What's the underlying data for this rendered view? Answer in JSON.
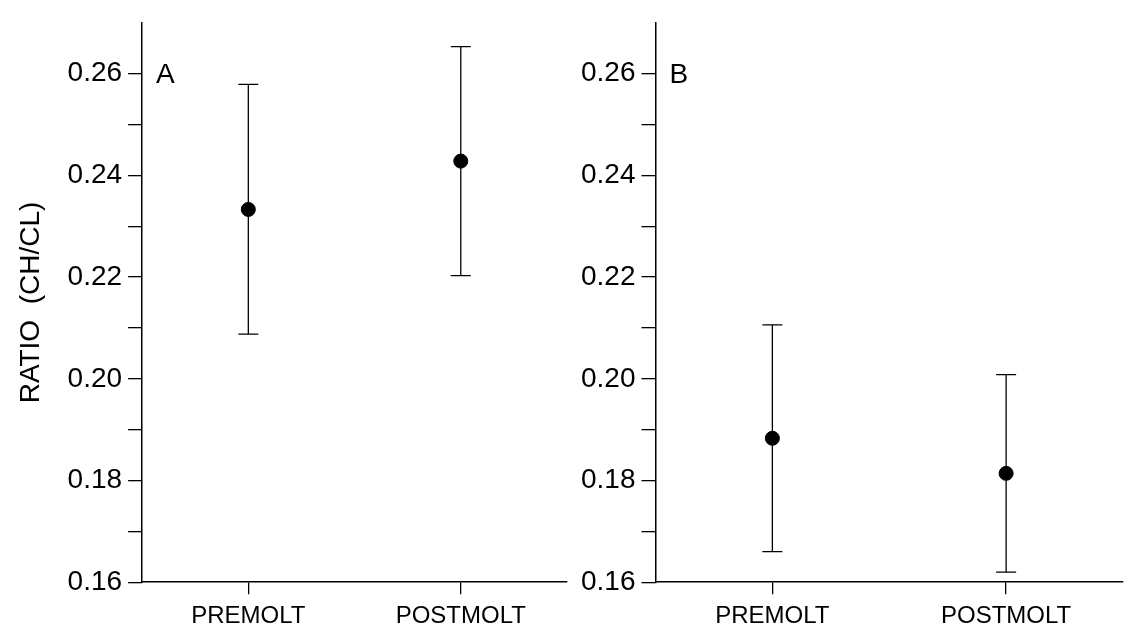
{
  "chart_data": [
    {
      "type": "scatter",
      "ylabel": "RATIO  (CH/CL)",
      "annotations": [
        "A"
      ],
      "categories": [
        "PREMOLT",
        "POSTMOLT"
      ],
      "series": [
        {
          "color": "#000000",
          "values": [
            0.2333,
            0.2428
          ],
          "errors": [
            [
              0.2088,
              0.2579
            ],
            [
              0.2203,
              0.2653
            ]
          ]
        }
      ],
      "ylim": [
        0.16,
        0.27
      ],
      "yticks": [
        0.16,
        {
          "value": 0.17,
          "label": null
        },
        0.18,
        {
          "value": 0.19,
          "label": null
        },
        {
          "value": 0.2,
          "label": "0.20"
        },
        {
          "value": 0.21,
          "label": null
        },
        0.22,
        {
          "value": 0.23,
          "label": null
        },
        0.24,
        {
          "value": 0.25,
          "label": null
        },
        0.26
      ],
      "marker": "circle",
      "grid": false,
      "legend": false
    },
    {
      "type": "scatter",
      "annotations": [
        "B"
      ],
      "categories": [
        "PREMOLT",
        "POSTMOLT"
      ],
      "series": [
        {
          "color": "#000000",
          "values": [
            0.1883,
            0.1814
          ],
          "errors": [
            [
              0.166,
              0.2106
            ],
            [
              0.162,
              0.2008
            ]
          ]
        }
      ],
      "ylim": [
        0.16,
        0.27
      ],
      "yticks": [
        0.16,
        {
          "value": 0.17,
          "label": null
        },
        0.18,
        {
          "value": 0.19,
          "label": null
        },
        {
          "value": 0.2,
          "label": "0.20"
        },
        {
          "value": 0.21,
          "label": null
        },
        0.22,
        {
          "value": 0.23,
          "label": null
        },
        0.24,
        {
          "value": 0.25,
          "label": null
        },
        0.26
      ],
      "marker": "circle",
      "grid": false,
      "legend": false
    }
  ]
}
